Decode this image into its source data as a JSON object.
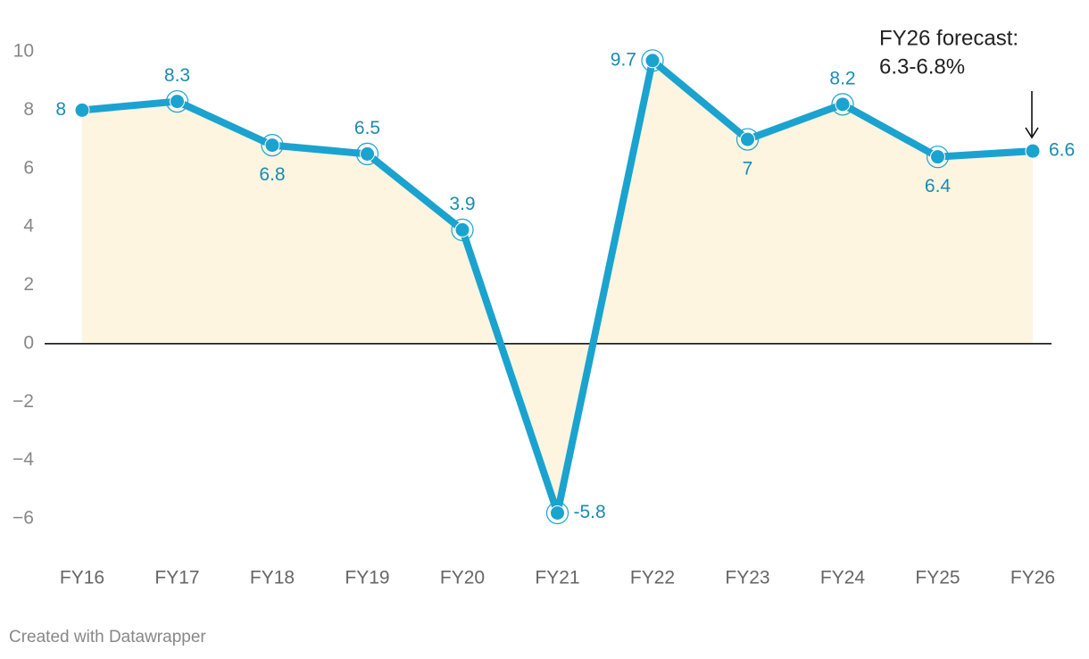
{
  "chart_data": {
    "type": "line",
    "categories": [
      "FY16",
      "FY17",
      "FY18",
      "FY19",
      "FY20",
      "FY21",
      "FY22",
      "FY23",
      "FY24",
      "FY25",
      "FY26"
    ],
    "values": [
      8,
      8.3,
      6.8,
      6.5,
      3.9,
      -5.8,
      9.7,
      7,
      8.2,
      6.4,
      6.6
    ],
    "color": "#1ba3cf",
    "area_color": "#fdf5e0",
    "label_color": "#1a8bb0",
    "ylim": [
      -6,
      10
    ],
    "yticks": [
      {
        "value": -6,
        "label": "−6"
      },
      {
        "value": -4,
        "label": "−4"
      },
      {
        "value": -2,
        "label": "−2"
      },
      0,
      2,
      4,
      6,
      8,
      10
    ],
    "grid": false,
    "annotation": [
      "FY26 forecast:",
      "6.3-6.8%"
    ],
    "footer": "Created with Datawrapper"
  }
}
